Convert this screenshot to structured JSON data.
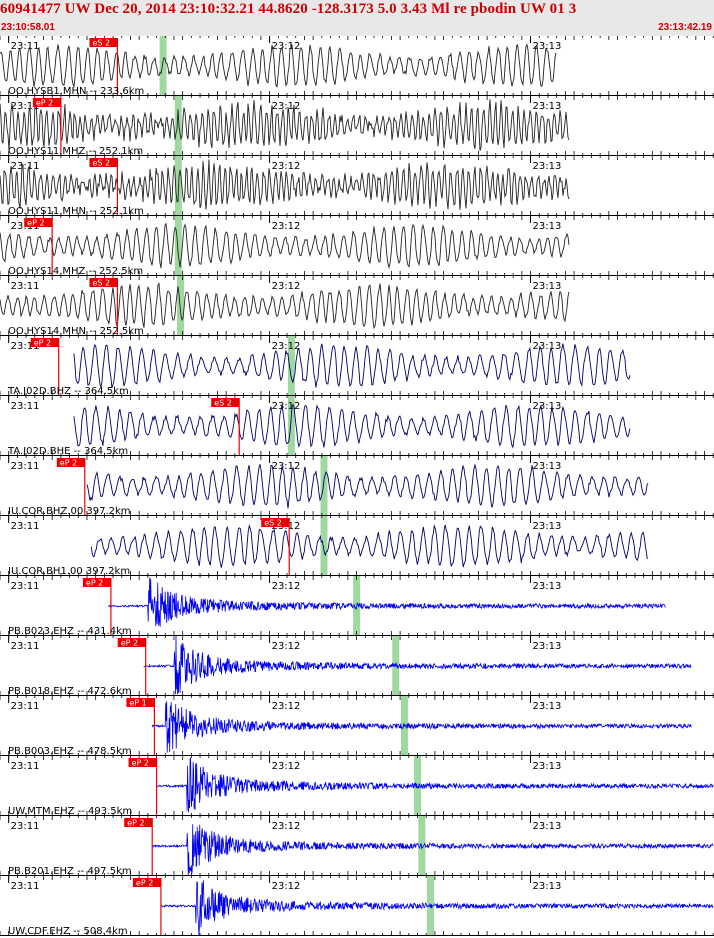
{
  "header": {
    "title": "60941477 UW Dec 20, 2014 23:10:32.21    44.8620 -128.3173  5.0 3.43 Ml re pbodin UW 01   3",
    "start_time": "23:10:58.01",
    "end_time": "23:13:42.19"
  },
  "colors": {
    "header_text": "#cc0000",
    "header_bg": "#e8e8e8",
    "pick_marker": "#ee0000",
    "pick_band": "#9fd99f",
    "series_ocean": "#222222",
    "series_broadband": "#000066",
    "series_borehole": "#0000ee"
  },
  "time_axis": {
    "start_sec": 0,
    "end_sec": 164.18,
    "tick_labels": [
      "23:11",
      "23:12",
      "23:13"
    ],
    "tick_secs": [
      1.99,
      61.99,
      121.99
    ]
  },
  "traces": [
    {
      "label": "OO.HYSB1.MHN -- 233.6km",
      "pick": "eS 2",
      "pick_sec": 27,
      "phase_sec": 37.5,
      "trace_start": 0,
      "trace_end": 128,
      "type": "ocean"
    },
    {
      "label": "OO.HYS11.MHZ -- 252.1km",
      "pick": "eP 2",
      "pick_sec": 14,
      "phase_sec": 41,
      "trace_start": 0,
      "trace_end": 131,
      "type": "ocean"
    },
    {
      "label": "OO.HYS11.MHN -- 252.1km",
      "pick": "eS 2",
      "pick_sec": 27,
      "phase_sec": 41,
      "trace_start": 0,
      "trace_end": 131,
      "type": "ocean"
    },
    {
      "label": "OO.HYS14.MHZ -- 252.5km",
      "pick": "eP 2",
      "pick_sec": 12,
      "phase_sec": 41,
      "trace_start": 0,
      "trace_end": 131,
      "type": "ocean"
    },
    {
      "label": "OO.HYS14.MHN -- 252.5km",
      "pick": "eS 2",
      "pick_sec": 27,
      "phase_sec": 41.5,
      "trace_start": 0,
      "trace_end": 131,
      "type": "ocean"
    },
    {
      "label": "TA.J02D.BHZ -- 364.5km",
      "pick": "eP 2",
      "pick_sec": 13.5,
      "phase_sec": 67,
      "trace_start": 17,
      "trace_end": 145,
      "type": "broadband"
    },
    {
      "label": "TA.J02D.BHE -- 364.5km",
      "pick": "eS 2",
      "pick_sec": 55,
      "phase_sec": 67,
      "trace_start": 17,
      "trace_end": 145,
      "type": "broadband"
    },
    {
      "label": "IU.COR.BHZ.00 397.2km",
      "pick": "eP 2",
      "pick_sec": 19.5,
      "phase_sec": 74.5,
      "trace_start": 20,
      "trace_end": 149,
      "type": "broadband"
    },
    {
      "label": "IU.COR.BH1.00 397.2km",
      "pick": "eS 2",
      "pick_sec": 66.5,
      "phase_sec": 74.5,
      "trace_start": 21,
      "trace_end": 149,
      "type": "broadband"
    },
    {
      "label": "PB.B023.EHZ -- 431.4km",
      "pick": "eP 2",
      "pick_sec": 25.5,
      "phase_sec": 82,
      "trace_start": 25,
      "trace_end": 153,
      "type": "borehole",
      "onset_sec": 34
    },
    {
      "label": "PB.B018.EHZ -- 472.6km",
      "pick": "eP 2",
      "pick_sec": 33.5,
      "phase_sec": 91,
      "trace_start": 33,
      "trace_end": 159,
      "type": "borehole",
      "onset_sec": 40
    },
    {
      "label": "PB.B003.EHZ -- 478.5km",
      "pick": "eP 1",
      "pick_sec": 35.5,
      "phase_sec": 93,
      "trace_start": 35,
      "trace_end": 159,
      "type": "borehole",
      "onset_sec": 38
    },
    {
      "label": "UW.MTM.EHZ -- 493.5km",
      "pick": "eP 2",
      "pick_sec": 36,
      "phase_sec": 96,
      "trace_start": 36,
      "trace_end": 164,
      "type": "borehole",
      "onset_sec": 43
    },
    {
      "label": "PB.B201.EHZ -- 497.5km",
      "pick": "eP 2",
      "pick_sec": 35,
      "phase_sec": 97,
      "trace_start": 35,
      "trace_end": 164,
      "type": "borehole",
      "onset_sec": 43
    },
    {
      "label": "UW.CDF.EHZ -- 508.4km",
      "pick": "eP 2",
      "pick_sec": 37,
      "phase_sec": 99,
      "trace_start": 37,
      "trace_end": 164,
      "type": "borehole",
      "onset_sec": 45
    }
  ]
}
